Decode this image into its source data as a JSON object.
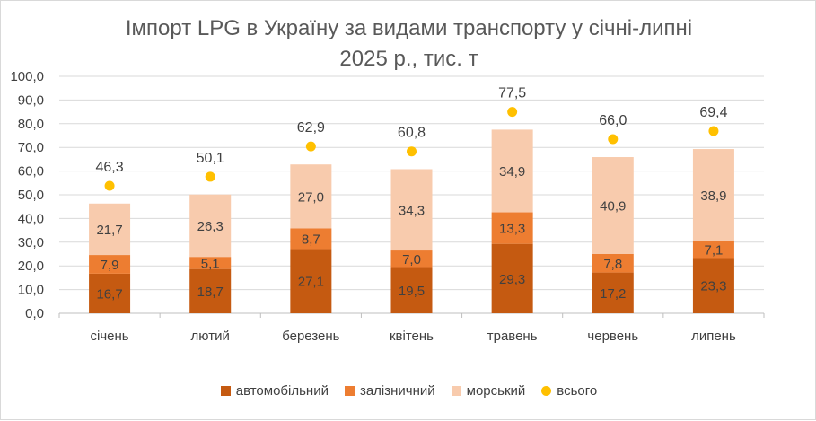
{
  "chart_data": {
    "type": "bar",
    "stacked": true,
    "title_line1": "Імпорт LPG в Україну за видами транспорту у січні-липні",
    "title_line2": "2025 р., тис. т",
    "categories": [
      "січень",
      "лютий",
      "березень",
      "квітень",
      "травень",
      "червень",
      "липень"
    ],
    "y_ticks": [
      "0,0",
      "10,0",
      "20,0",
      "30,0",
      "40,0",
      "50,0",
      "60,0",
      "70,0",
      "80,0",
      "90,0",
      "100,0"
    ],
    "ylim": [
      0,
      100
    ],
    "grid": true,
    "legend_position": "bottom",
    "series": [
      {
        "name": "автомобільний",
        "color": "#c55a11",
        "values": [
          16.7,
          18.7,
          27.1,
          19.5,
          29.3,
          17.2,
          23.3
        ],
        "labels": [
          "16,7",
          "18,7",
          "27,1",
          "19,5",
          "29,3",
          "17,2",
          "23,3"
        ]
      },
      {
        "name": "залізничний",
        "color": "#ed7d31",
        "values": [
          7.9,
          5.1,
          8.7,
          7.0,
          13.3,
          7.8,
          7.1
        ],
        "labels": [
          "7,9",
          "5,1",
          "8,7",
          "7,0",
          "13,3",
          "7,8",
          "7,1"
        ]
      },
      {
        "name": "морський",
        "color": "#f8cbad",
        "values": [
          21.7,
          26.3,
          27.0,
          34.3,
          34.9,
          40.9,
          38.9
        ],
        "labels": [
          "21,7",
          "26,3",
          "27,0",
          "34,3",
          "34,9",
          "40,9",
          "38,9"
        ]
      }
    ],
    "total": {
      "name": "всього",
      "color": "#ffc000",
      "values": [
        46.3,
        50.1,
        62.9,
        60.8,
        77.5,
        66.0,
        69.4
      ],
      "labels": [
        "46,3",
        "50,1",
        "62,9",
        "60,8",
        "77,5",
        "66,0",
        "69,4"
      ]
    }
  }
}
